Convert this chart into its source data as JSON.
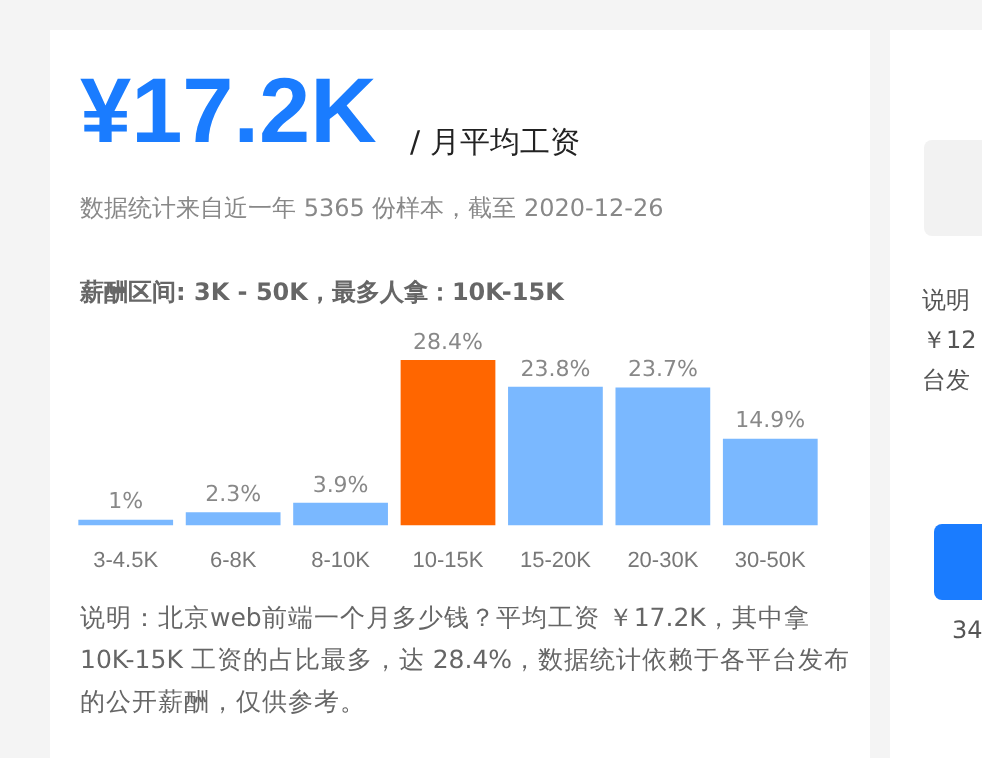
{
  "chart_data": {
    "type": "bar",
    "title": "¥17.2K",
    "subtitle": "/ 月平均工资",
    "categories": [
      "3-4.5K",
      "6-8K",
      "8-10K",
      "10-15K",
      "15-20K",
      "20-30K",
      "30-50K"
    ],
    "values": [
      1,
      2.3,
      3.9,
      28.4,
      23.8,
      23.7,
      14.9
    ],
    "colors": [
      "#7ab8ff",
      "#7ab8ff",
      "#7ab8ff",
      "#ff6600",
      "#7ab8ff",
      "#7ab8ff",
      "#7ab8ff"
    ],
    "value_labels": [
      "1%",
      "2.3%",
      "3.9%",
      "28.4%",
      "23.8%",
      "23.7%",
      "14.9%"
    ],
    "annotations": [
      "数据统计来自近一年 5365 份样本，截至 2020-12-26",
      "薪酬区间: 3K - 50K，最多人拿：10K-15K",
      "说明：北京web前端一个月多少钱？平均工资 ￥17.2K，其中拿 10K-15K 工资的占比最多，达 28.4%，数据统计依赖于各平台发布的公开薪酬，仅供参考。",
      "说明",
      "￥12",
      "台发",
      "34"
    ],
    "legend": false
  }
}
